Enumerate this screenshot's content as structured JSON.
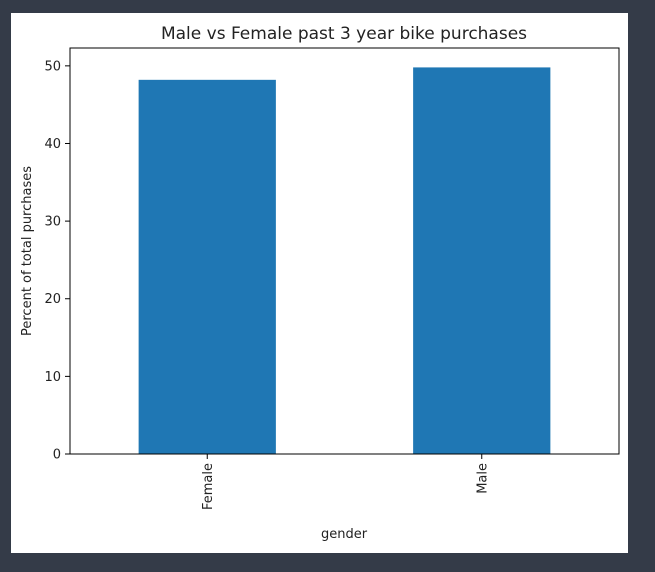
{
  "chart_data": {
    "type": "bar",
    "title": "Male vs Female past 3 year bike purchases",
    "xlabel": "gender",
    "ylabel": "Percent of total purchases",
    "categories": [
      "Female",
      "Male"
    ],
    "values": [
      48.2,
      49.8
    ],
    "ylim": [
      0,
      52.3
    ],
    "yticks": [
      0,
      10,
      20,
      30,
      40,
      50
    ],
    "grid": false,
    "legend": "none",
    "bar_color": "#1f77b4",
    "tick_label_rotation": "vertical"
  }
}
